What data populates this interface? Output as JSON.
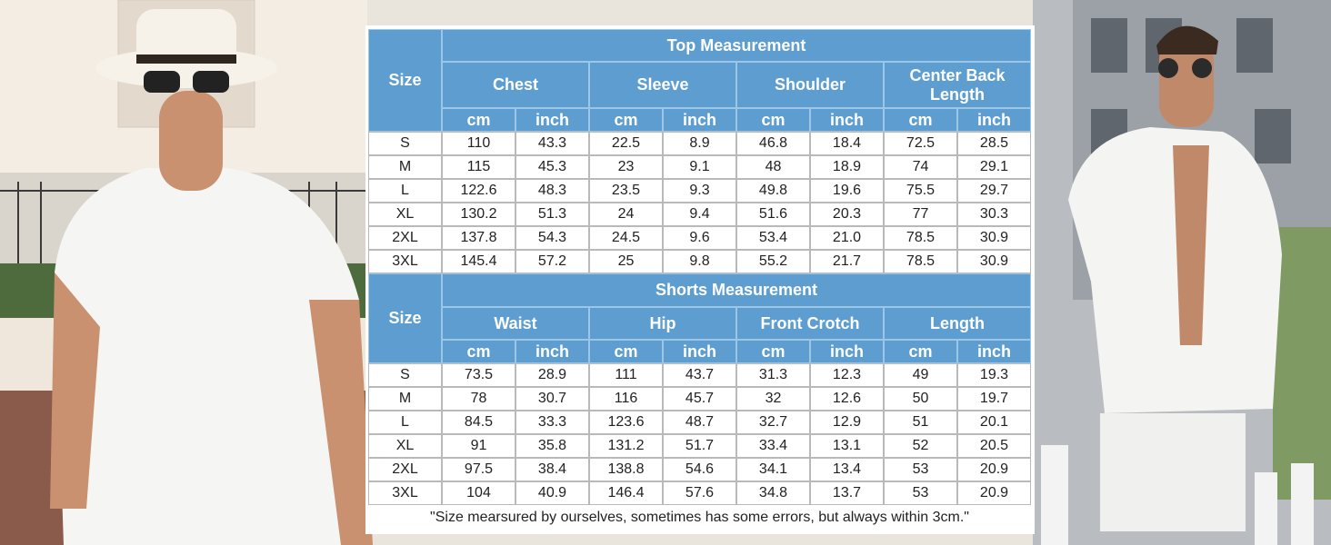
{
  "top": {
    "title": "Top Measurement",
    "size_label": "Size",
    "columns": [
      "Chest",
      "Sleeve",
      "Shoulder",
      "Center Back Length"
    ],
    "units": [
      "cm",
      "inch",
      "cm",
      "inch",
      "cm",
      "inch",
      "cm",
      "inch"
    ],
    "rows": [
      [
        "S",
        "110",
        "43.3",
        "22.5",
        "8.9",
        "46.8",
        "18.4",
        "72.5",
        "28.5"
      ],
      [
        "M",
        "115",
        "45.3",
        "23",
        "9.1",
        "48",
        "18.9",
        "74",
        "29.1"
      ],
      [
        "L",
        "122.6",
        "48.3",
        "23.5",
        "9.3",
        "49.8",
        "19.6",
        "75.5",
        "29.7"
      ],
      [
        "XL",
        "130.2",
        "51.3",
        "24",
        "9.4",
        "51.6",
        "20.3",
        "77",
        "30.3"
      ],
      [
        "2XL",
        "137.8",
        "54.3",
        "24.5",
        "9.6",
        "53.4",
        "21.0",
        "78.5",
        "30.9"
      ],
      [
        "3XL",
        "145.4",
        "57.2",
        "25",
        "9.8",
        "55.2",
        "21.7",
        "78.5",
        "30.9"
      ]
    ]
  },
  "shorts": {
    "title": "Shorts Measurement",
    "size_label": "Size",
    "columns": [
      "Waist",
      "Hip",
      "Front Crotch",
      "Length"
    ],
    "units": [
      "cm",
      "inch",
      "cm",
      "inch",
      "cm",
      "inch",
      "cm",
      "inch"
    ],
    "rows": [
      [
        "S",
        "73.5",
        "28.9",
        "111",
        "43.7",
        "31.3",
        "12.3",
        "49",
        "19.3"
      ],
      [
        "M",
        "78",
        "30.7",
        "116",
        "45.7",
        "32",
        "12.6",
        "50",
        "19.7"
      ],
      [
        "L",
        "84.5",
        "33.3",
        "123.6",
        "48.7",
        "32.7",
        "12.9",
        "51",
        "20.1"
      ],
      [
        "XL",
        "91",
        "35.8",
        "131.2",
        "51.7",
        "33.4",
        "13.1",
        "52",
        "20.5"
      ],
      [
        "2XL",
        "97.5",
        "38.4",
        "138.8",
        "54.6",
        "34.1",
        "13.4",
        "53",
        "20.9"
      ],
      [
        "3XL",
        "104",
        "40.9",
        "146.4",
        "57.6",
        "34.8",
        "13.7",
        "53",
        "20.9"
      ]
    ]
  },
  "note": "\"Size mearsured by ourselves, sometimes has some errors, but always within 3cm.\""
}
